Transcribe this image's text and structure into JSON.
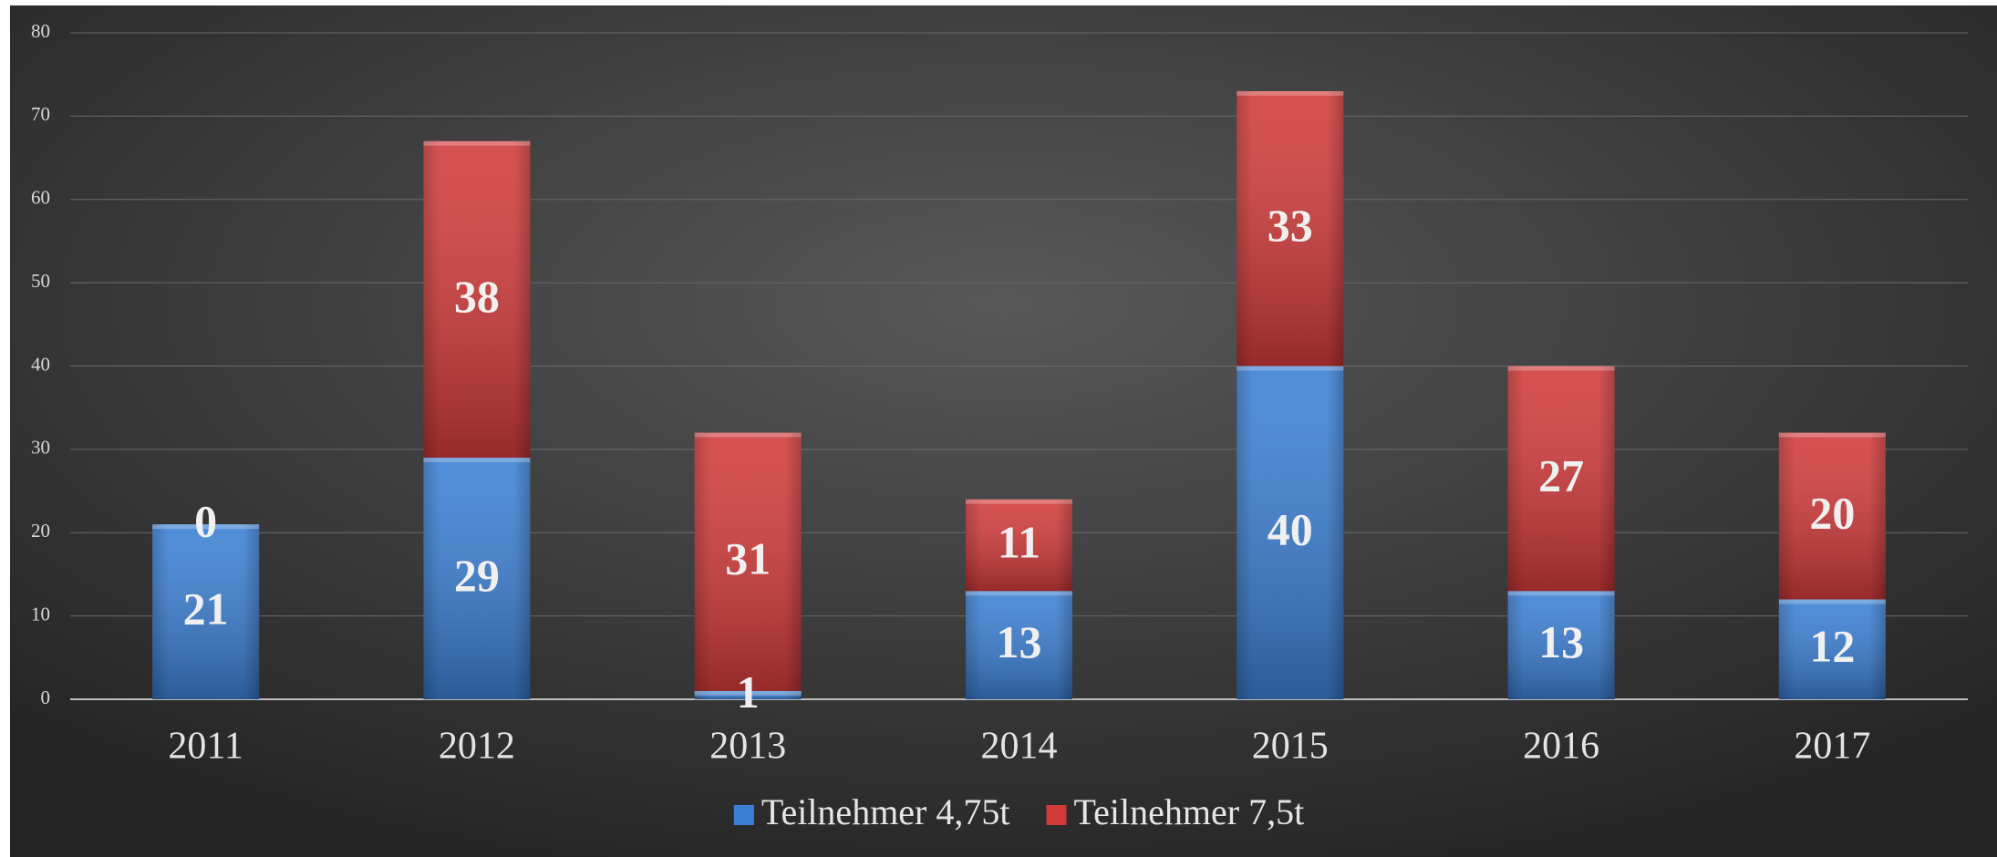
{
  "chart_data": {
    "type": "stacked_bar",
    "categories": [
      "2011",
      "2012",
      "2013",
      "2014",
      "2015",
      "2016",
      "2017"
    ],
    "series": [
      {
        "name": "Teilnehmer 4,75t",
        "color": "#3b7fd4",
        "values": [
          21,
          29,
          1,
          13,
          40,
          13,
          12
        ]
      },
      {
        "name": "Teilnehmer 7,5t",
        "color": "#d23a3a",
        "values": [
          0,
          38,
          31,
          11,
          33,
          27,
          20
        ]
      }
    ],
    "ylim": [
      0,
      80
    ],
    "yticks": [
      0,
      10,
      20,
      30,
      40,
      50,
      60,
      70,
      80
    ],
    "grid": true,
    "legend": "bottom"
  }
}
